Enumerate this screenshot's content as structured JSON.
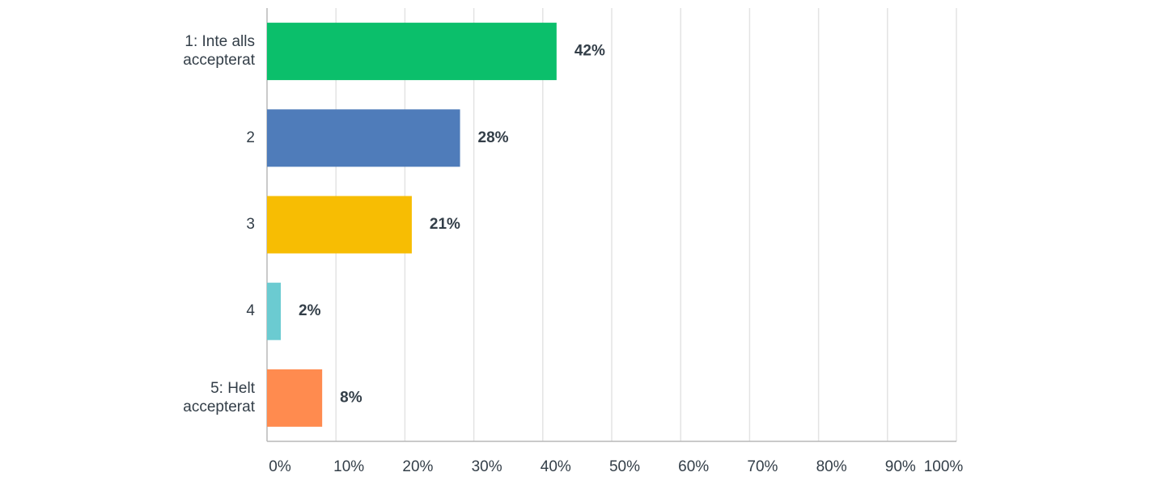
{
  "chart_data": {
    "type": "barh",
    "categories": [
      "1: Inte alls accepterat",
      "2",
      "3",
      "4",
      "5: Helt accepterat"
    ],
    "values": [
      42,
      28,
      21,
      2,
      8
    ],
    "value_labels": [
      "42%",
      "28%",
      "21%",
      "2%",
      "8%"
    ],
    "colors": [
      "#0bbf6b",
      "#4f7cba",
      "#f7bd03",
      "#6bcbd1",
      "#ff8b4f"
    ],
    "xlim": [
      0,
      100
    ],
    "xticks": [
      {
        "value": 0,
        "label": "0%"
      },
      {
        "value": 10,
        "label": "10%"
      },
      {
        "value": 20,
        "label": "20%"
      },
      {
        "value": 30,
        "label": "30%"
      },
      {
        "value": 40,
        "label": "40%"
      },
      {
        "value": 50,
        "label": "50%"
      },
      {
        "value": 60,
        "label": "60%"
      },
      {
        "value": 70,
        "label": "70%"
      },
      {
        "value": 80,
        "label": "80%"
      },
      {
        "value": 90,
        "label": "90%"
      },
      {
        "value": 100,
        "label": "100%"
      }
    ],
    "grid": true
  }
}
